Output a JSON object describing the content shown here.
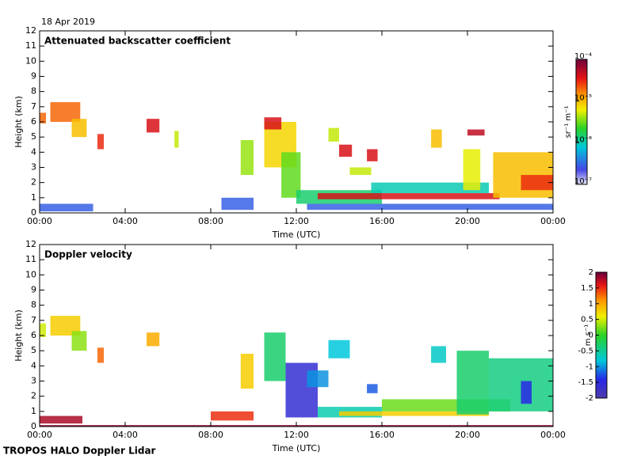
{
  "date": "18 Apr 2019",
  "footer": "TROPOS HALO Doppler Lidar",
  "chart_data": [
    {
      "type": "heatmap",
      "title": "Attenuated backscatter coefficient",
      "x_label": "Time (UTC)",
      "y_label": "Height (km)",
      "colorbar_label": "sr⁻¹ m⁻¹",
      "colormap": "rainbow-white",
      "log_color": true,
      "xlim": [
        0,
        24
      ],
      "xticks": [
        {
          "value": 0,
          "label": "00:00"
        },
        {
          "value": 4,
          "label": "04:00"
        },
        {
          "value": 8,
          "label": "08:00"
        },
        {
          "value": 12,
          "label": "12:00"
        },
        {
          "value": 16,
          "label": "16:00"
        },
        {
          "value": 20,
          "label": "20:00"
        },
        {
          "value": 24,
          "label": "00:00"
        }
      ],
      "ylim": [
        0,
        12
      ],
      "yticks": [
        0,
        1,
        2,
        3,
        4,
        5,
        6,
        7,
        8,
        9,
        10,
        11,
        12
      ],
      "clim": [
        1e-07,
        0.0001
      ],
      "cticks": [
        {
          "value": 1e-07,
          "label": "10⁻⁷"
        },
        {
          "value": 1e-06,
          "label": "10⁻⁶"
        },
        {
          "value": 1e-05,
          "label": "10⁻⁵"
        },
        {
          "value": 0.0001,
          "label": "10⁻⁴"
        }
      ],
      "cells": [
        {
          "x": [
            0,
            2.5
          ],
          "y": [
            0.1,
            0.6
          ],
          "value": 3e-07
        },
        {
          "x": [
            0,
            0.3
          ],
          "y": [
            5.9,
            6.6
          ],
          "value": 2e-05
        },
        {
          "x": [
            0.5,
            1.9
          ],
          "y": [
            6,
            7.3
          ],
          "value": 2e-05
        },
        {
          "x": [
            1.5,
            2.2
          ],
          "y": [
            5,
            6.2
          ],
          "value": 1e-05
        },
        {
          "x": [
            2.7,
            3
          ],
          "y": [
            4.2,
            5.2
          ],
          "value": 3e-05
        },
        {
          "x": [
            5,
            5.6
          ],
          "y": [
            5.3,
            6.2
          ],
          "value": 4e-05
        },
        {
          "x": [
            6.3,
            6.5
          ],
          "y": [
            4.3,
            5.4
          ],
          "value": 5e-06
        },
        {
          "x": [
            8.5,
            10
          ],
          "y": [
            0.2,
            1
          ],
          "value": 3e-07
        },
        {
          "x": [
            9.4,
            10
          ],
          "y": [
            2.5,
            4.8
          ],
          "value": 4e-06
        },
        {
          "x": [
            10.5,
            12
          ],
          "y": [
            3,
            6
          ],
          "value": 8e-06
        },
        {
          "x": [
            10.5,
            11.3
          ],
          "y": [
            5.5,
            6.3
          ],
          "value": 4e-05
        },
        {
          "x": [
            11.3,
            12.2
          ],
          "y": [
            1,
            4
          ],
          "value": 3e-06
        },
        {
          "x": [
            12.5,
            24
          ],
          "y": [
            0.2,
            0.6
          ],
          "value": 3e-07
        },
        {
          "x": [
            12,
            16
          ],
          "y": [
            0.6,
            1.5
          ],
          "value": 1.5e-06
        },
        {
          "x": [
            15.5,
            21
          ],
          "y": [
            1.3,
            2
          ],
          "value": 1e-06
        },
        {
          "x": [
            13,
            21.5
          ],
          "y": [
            0.9,
            1.3
          ],
          "value": 4e-05
        },
        {
          "x": [
            13.5,
            14
          ],
          "y": [
            4.7,
            5.6
          ],
          "value": 5e-06
        },
        {
          "x": [
            14,
            14.6
          ],
          "y": [
            3.7,
            4.5
          ],
          "value": 4e-05
        },
        {
          "x": [
            14.5,
            15.5
          ],
          "y": [
            2.5,
            3
          ],
          "value": 5e-06
        },
        {
          "x": [
            15.3,
            15.8
          ],
          "y": [
            3.4,
            4.2
          ],
          "value": 4e-05
        },
        {
          "x": [
            18.3,
            18.8
          ],
          "y": [
            4.3,
            5.5
          ],
          "value": 1e-05
        },
        {
          "x": [
            19.8,
            20.6
          ],
          "y": [
            1.5,
            4.2
          ],
          "value": 6e-06
        },
        {
          "x": [
            20,
            20.8
          ],
          "y": [
            5.1,
            5.5
          ],
          "value": 5e-05
        },
        {
          "x": [
            21.2,
            24
          ],
          "y": [
            1,
            4
          ],
          "value": 1e-05
        },
        {
          "x": [
            22.5,
            24
          ],
          "y": [
            1.5,
            2.5
          ],
          "value": 3e-05
        }
      ]
    },
    {
      "type": "heatmap",
      "title": "Doppler velocity",
      "x_label": "Time (UTC)",
      "y_label": "Height (km)",
      "colorbar_label": "m s⁻¹",
      "colormap": "rainbow",
      "log_color": false,
      "xlim": [
        0,
        24
      ],
      "xticks": [
        {
          "value": 0,
          "label": "00:00"
        },
        {
          "value": 4,
          "label": "04:00"
        },
        {
          "value": 8,
          "label": "08:00"
        },
        {
          "value": 12,
          "label": "12:00"
        },
        {
          "value": 16,
          "label": "16:00"
        },
        {
          "value": 20,
          "label": "20:00"
        },
        {
          "value": 24,
          "label": "00:00"
        }
      ],
      "ylim": [
        0,
        12
      ],
      "yticks": [
        0,
        1,
        2,
        3,
        4,
        5,
        6,
        7,
        8,
        9,
        10,
        11,
        12
      ],
      "clim": [
        -2,
        2
      ],
      "cticks": [
        -2,
        -1.5,
        -1,
        -0.5,
        0,
        0.5,
        1,
        1.5,
        2
      ],
      "cells": [
        {
          "x": [
            0,
            24
          ],
          "y": [
            0,
            0.1
          ],
          "value": 1.9
        },
        {
          "x": [
            0,
            2
          ],
          "y": [
            0.2,
            0.7
          ],
          "value": 1.8
        },
        {
          "x": [
            0,
            0.3
          ],
          "y": [
            5.9,
            6.8
          ],
          "value": 0.5
        },
        {
          "x": [
            0.5,
            1.9
          ],
          "y": [
            6,
            7.3
          ],
          "value": 0.8
        },
        {
          "x": [
            1.5,
            2.2
          ],
          "y": [
            5,
            6.3
          ],
          "value": 0.3
        },
        {
          "x": [
            2.7,
            3
          ],
          "y": [
            4.2,
            5.2
          ],
          "value": 1.3
        },
        {
          "x": [
            5,
            5.6
          ],
          "y": [
            5.3,
            6.2
          ],
          "value": 1
        },
        {
          "x": [
            8,
            10
          ],
          "y": [
            0.4,
            1
          ],
          "value": 1.5
        },
        {
          "x": [
            9.4,
            10
          ],
          "y": [
            2.5,
            4.8
          ],
          "value": 0.8
        },
        {
          "x": [
            10.5,
            11.5
          ],
          "y": [
            3,
            6.2
          ],
          "value": -0.3
        },
        {
          "x": [
            11.5,
            13
          ],
          "y": [
            0.6,
            4.2
          ],
          "value": -1.6
        },
        {
          "x": [
            12.5,
            13.5
          ],
          "y": [
            2.6,
            3.7
          ],
          "value": -1
        },
        {
          "x": [
            13,
            16
          ],
          "y": [
            0.6,
            1.3
          ],
          "value": -0.6
        },
        {
          "x": [
            13.5,
            14.5
          ],
          "y": [
            4.5,
            5.7
          ],
          "value": -0.8
        },
        {
          "x": [
            14,
            21
          ],
          "y": [
            0.7,
            1
          ],
          "value": 0.8
        },
        {
          "x": [
            15.3,
            15.8
          ],
          "y": [
            2.2,
            2.8
          ],
          "value": -1.2
        },
        {
          "x": [
            16,
            22
          ],
          "y": [
            1,
            1.8
          ],
          "value": 0.2
        },
        {
          "x": [
            18.3,
            19
          ],
          "y": [
            4.2,
            5.3
          ],
          "value": -0.7
        },
        {
          "x": [
            19.5,
            21
          ],
          "y": [
            0.8,
            5
          ],
          "value": -0.3
        },
        {
          "x": [
            21,
            24
          ],
          "y": [
            1,
            4.5
          ],
          "value": -0.4
        },
        {
          "x": [
            22.5,
            23
          ],
          "y": [
            1.5,
            3
          ],
          "value": -1.4
        }
      ]
    }
  ]
}
